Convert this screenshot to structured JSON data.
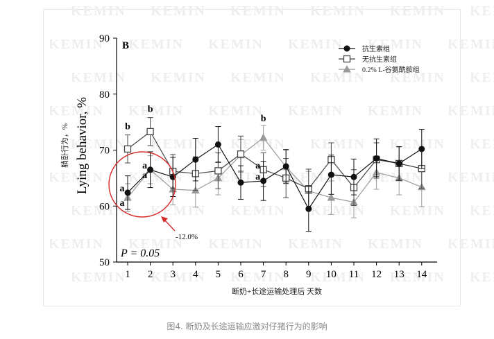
{
  "watermark_text": "KEMIN",
  "caption": "图4. 断奶及长途运输应激对仔猪行为的影响",
  "annotation": "-12.0%",
  "chart_data": {
    "type": "line",
    "panel_label": "B",
    "ylabel": "Lying behavior, %",
    "ylabel_cn": "躺卧行为，%",
    "xlabel": "断奶+长途运输处理后 天数",
    "p_value": "P = 0.05",
    "ylim": [
      50,
      90
    ],
    "yticks": [
      50,
      60,
      70,
      80,
      90
    ],
    "x": [
      1,
      2,
      3,
      4,
      5,
      6,
      7,
      8,
      9,
      10,
      11,
      12,
      13,
      14
    ],
    "grid": false,
    "legend_position": "top-right",
    "series": [
      {
        "name": "抗生素组",
        "marker": "filled-circle",
        "color": "#111111",
        "values": [
          62.4,
          66.5,
          65.2,
          68.3,
          71.0,
          64.2,
          64.5,
          67.1,
          59.5,
          65.6,
          65.2,
          68.5,
          67.6,
          70.2
        ],
        "errors": [
          3.0,
          3.2,
          3.5,
          3.8,
          3.2,
          3.0,
          3.5,
          3.0,
          4.0,
          3.5,
          3.2,
          3.5,
          3.0,
          3.5
        ]
      },
      {
        "name": "无抗生素组",
        "marker": "open-square",
        "color": "#444444",
        "values": [
          70.2,
          73.3,
          66.2,
          65.8,
          66.3,
          69.3,
          66.5,
          65.0,
          63.1,
          68.3,
          63.3,
          68.3,
          67.6,
          66.7
        ],
        "errors": [
          2.5,
          2.5,
          3.0,
          3.0,
          3.2,
          3.2,
          3.0,
          3.5,
          3.5,
          3.0,
          3.2,
          3.0,
          3.0,
          3.5
        ]
      },
      {
        "name": "0.2% L-谷氨酰胺组",
        "marker": "filled-triangle",
        "color": "#9a9a9a",
        "values": [
          61.5,
          66.5,
          63.0,
          62.8,
          65.0,
          69.1,
          72.2,
          67.0,
          62.7,
          61.5,
          60.7,
          66.0,
          65.0,
          63.4
        ],
        "errors": [
          2.5,
          2.5,
          2.8,
          3.0,
          3.0,
          2.8,
          2.2,
          3.0,
          3.5,
          3.0,
          2.8,
          3.0,
          3.0,
          3.5
        ]
      }
    ],
    "letter_labels": [
      {
        "x": 1,
        "series": 1,
        "text": "b"
      },
      {
        "x": 1,
        "series": 0,
        "text": "a"
      },
      {
        "x": 1,
        "series": 2,
        "text": "a"
      },
      {
        "x": 2,
        "series": 1,
        "text": "b"
      },
      {
        "x": 2,
        "series": 0,
        "text": "a"
      },
      {
        "x": 2,
        "series": 2,
        "text": "a"
      },
      {
        "x": 7,
        "series": 2,
        "text": "b"
      },
      {
        "x": 7,
        "series": 1,
        "text": "a"
      },
      {
        "x": 7,
        "series": 0,
        "text": "a"
      }
    ]
  }
}
